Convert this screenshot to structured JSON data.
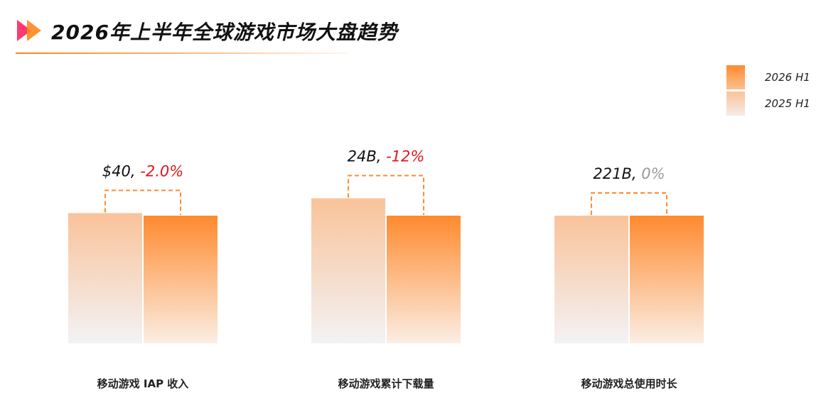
{
  "title": "2026年上半年全球游戏市场大盘趋势",
  "colors": {
    "h1_2026_top": "#ff8a2e",
    "h1_2026_bottom": "#fbeee4",
    "h1_2025_top": "#f9c39a",
    "h1_2025_bottom": "#f3f2f4",
    "negative_change": "#e0161e",
    "neutral_change": "#9a9a9a",
    "bracket": "#ff8a2e",
    "logo_left": "#ff3a6e",
    "logo_right": "#ff8a1e"
  },
  "legend": [
    {
      "label": "2026 H1"
    },
    {
      "label": "2025 H1"
    }
  ],
  "chart_data": {
    "type": "bar",
    "title": "2026年上半年全球游戏市场大盘趋势",
    "series": [
      {
        "name": "2025 H1",
        "values": [
          1.02,
          1.136,
          1.0
        ]
      },
      {
        "name": "2026 H1",
        "values": [
          1.0,
          1.0,
          1.0
        ]
      }
    ],
    "categories": [
      "移动游戏 IAP 收入",
      "移动游戏累计下载量",
      "移动游戏总使用时长"
    ],
    "groups": [
      {
        "category": "移动游戏 IAP 收入",
        "value_text": "$40",
        "change_text": "-2.0%",
        "change_type": "negative"
      },
      {
        "category": "移动游戏累计下载量",
        "value_text": "24B",
        "change_text": "-12%",
        "change_type": "negative"
      },
      {
        "category": "移动游戏总使用时长",
        "value_text": "221B",
        "change_text": "0%",
        "change_type": "neutral"
      }
    ],
    "grid": false,
    "legend_position": "top-right"
  }
}
